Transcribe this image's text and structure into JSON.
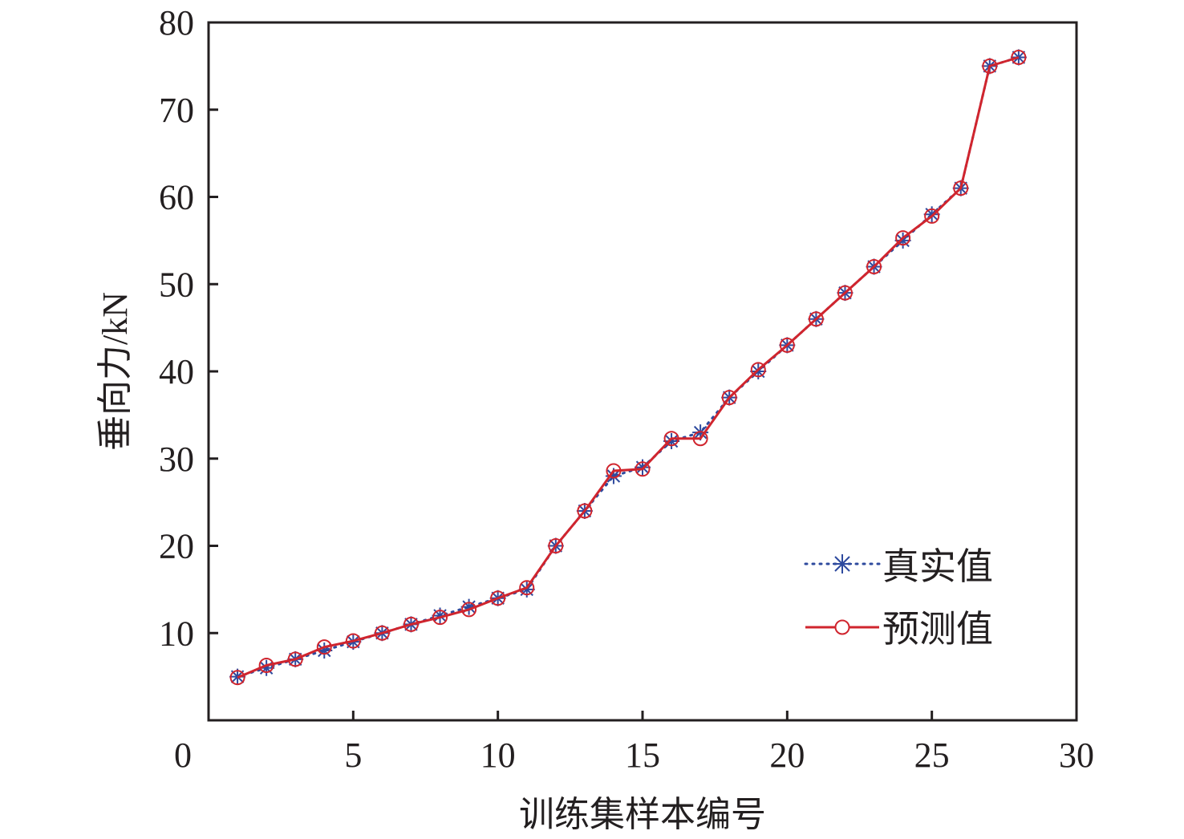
{
  "chart_data": {
    "type": "line",
    "title": "",
    "xlabel": "训练集样本编号",
    "ylabel": "垂向力/kN",
    "xlim": [
      0,
      30
    ],
    "ylim": [
      0,
      80
    ],
    "xticks": [
      "0",
      "5",
      "10",
      "15",
      "20",
      "25",
      "30"
    ],
    "yticks": [
      "10",
      "20",
      "30",
      "40",
      "50",
      "60",
      "70",
      "80"
    ],
    "grid": false,
    "legend_position": "bottom-right",
    "x": [
      1,
      2,
      3,
      4,
      5,
      6,
      7,
      8,
      9,
      10,
      11,
      12,
      13,
      14,
      15,
      16,
      17,
      18,
      19,
      20,
      21,
      22,
      23,
      24,
      25,
      26,
      27,
      28
    ],
    "series": [
      {
        "name": "真实值",
        "color": "#2e4a9e",
        "line_style": "dotted",
        "marker": "asterisk",
        "values": [
          5,
          6,
          7,
          8,
          9,
          10,
          11,
          12,
          13,
          14,
          15,
          20,
          24,
          28,
          29,
          32,
          33,
          37,
          40,
          43,
          46,
          49,
          52,
          55,
          58,
          61,
          75,
          76
        ]
      },
      {
        "name": "预测值",
        "color": "#d0252e",
        "line_style": "solid",
        "marker": "circle",
        "values": [
          4.9,
          6.3,
          7,
          8.4,
          9.1,
          10,
          11,
          11.8,
          12.7,
          14,
          15.2,
          20,
          24,
          28.6,
          28.8,
          32.3,
          32.3,
          37,
          40.2,
          43,
          46,
          49,
          52,
          55.3,
          57.8,
          61,
          75,
          76
        ]
      }
    ]
  }
}
